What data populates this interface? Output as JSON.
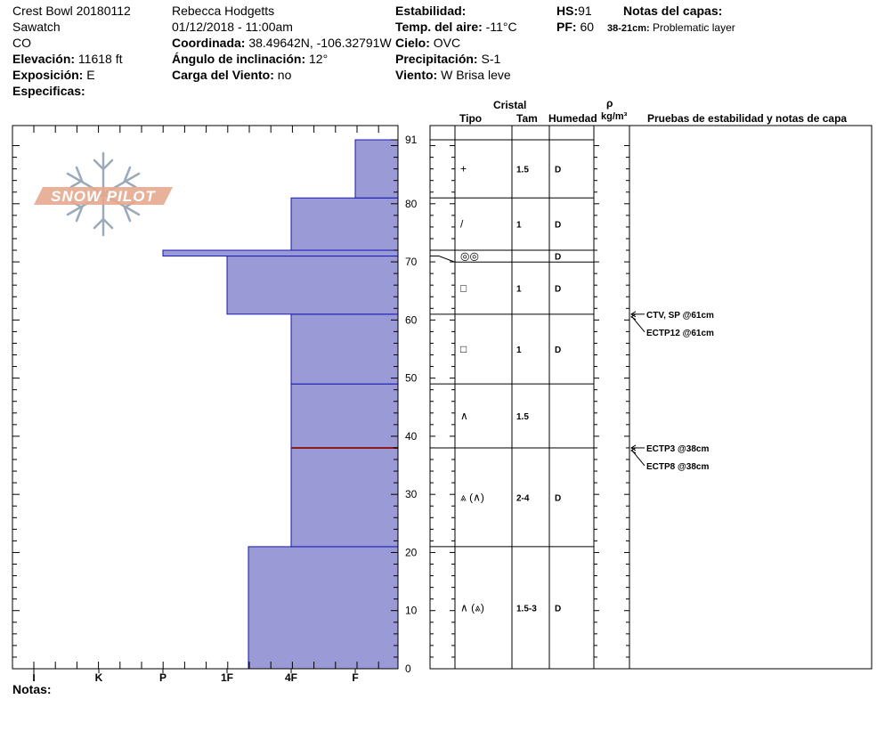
{
  "header": {
    "col1": {
      "site": "Crest Bowl 20180112",
      "range": "Sawatch",
      "state": "CO",
      "elevation_label": "Elevación:",
      "elevation_value": "11618 ft",
      "aspect_label": "Exposición:",
      "aspect_value": "E",
      "specifics_label": "Especificas:"
    },
    "col2": {
      "observer": "Rebecca Hodgetts",
      "datetime": "01/12/2018 - 11:00am",
      "coord_label": "Coordinada:",
      "coord_value": "38.49642N, -106.32791W",
      "slope_label": "Ángulo de inclinación:",
      "slope_value": "12°",
      "wind_load_label": "Carga del Viento:",
      "wind_load_value": "no"
    },
    "col3": {
      "stability_label": "Estabilidad:",
      "air_temp_label": "Temp. del aire:",
      "air_temp_value": "-11°C",
      "sky_label": "Cielo:",
      "sky_value": "OVC",
      "precip_label": "Precipitación:",
      "precip_value": "S-1",
      "wind_label": "Viento:",
      "wind_value": "W Brisa leve"
    },
    "col4": {
      "hs_label": "HS:",
      "hs_value": "91",
      "pf_label": "PF:",
      "pf_value": "60"
    },
    "layer_notes": {
      "title": "Notas del capas:",
      "range": "38-21cm:",
      "text": "Problematic layer"
    }
  },
  "logo": {
    "text": "SNOW PILOT"
  },
  "table_headers": {
    "crystal": "Cristal",
    "type": "Tipo",
    "size": "Tam",
    "moisture": "Humedad",
    "rho": "ρ",
    "density_unit": "kg/m³",
    "tests": "Pruebas de estabilidad y notas de capa"
  },
  "notes_label": "Notas:",
  "chart_data": {
    "type": "bar",
    "subtype": "snow-hardness-profile",
    "y_unit": "cm",
    "ylim": [
      0,
      91
    ],
    "y_ticks": [
      "0",
      "10",
      "20",
      "30",
      "40",
      "50",
      "60",
      "70",
      "80",
      "91"
    ],
    "x_ticks": [
      "I",
      "K",
      "P",
      "1F",
      "4F",
      "F"
    ],
    "hardness_layers": [
      {
        "bottom": 0,
        "top": 21,
        "hardness": "1F+"
      },
      {
        "bottom": 21,
        "top": 38,
        "hardness": "4F"
      },
      {
        "bottom": 38,
        "top": 49,
        "hardness": "4F"
      },
      {
        "bottom": 49,
        "top": 61,
        "hardness": "4F"
      },
      {
        "bottom": 61,
        "top": 71,
        "hardness": "1F"
      },
      {
        "bottom": 71,
        "top": 72,
        "hardness": "P"
      },
      {
        "bottom": 72,
        "top": 81,
        "hardness": "4F"
      },
      {
        "bottom": 81,
        "top": 91,
        "hardness": "F"
      }
    ],
    "problem_layer_depth": 38,
    "layer_rows": [
      {
        "bottom": 81,
        "top": 91,
        "type": "+",
        "size": "1.5",
        "moisture": "D"
      },
      {
        "bottom": 72,
        "top": 81,
        "type": "/",
        "size": "1",
        "moisture": "D"
      },
      {
        "bottom": 71,
        "top": 72,
        "type": "◎◎",
        "size": "",
        "moisture": "D"
      },
      {
        "bottom": 61,
        "top": 71,
        "type": "□",
        "size": "1",
        "moisture": "D"
      },
      {
        "bottom": 49,
        "top": 61,
        "type": "□",
        "size": "1",
        "moisture": "D"
      },
      {
        "bottom": 38,
        "top": 49,
        "type": "∧",
        "size": "1.5",
        "moisture": ""
      },
      {
        "bottom": 21,
        "top": 38,
        "type": "⩓ (∧)",
        "size": "2-4",
        "moisture": "D"
      },
      {
        "bottom": 0,
        "top": 21,
        "type": "∧ (⩓)",
        "size": "1.5-3",
        "moisture": "D"
      }
    ],
    "stability_tests": [
      {
        "depth": 61,
        "text": "CTV, SP @61cm"
      },
      {
        "depth": 61,
        "text": "ECTP12 @61cm"
      },
      {
        "depth": 38,
        "text": "ECTP3 @38cm"
      },
      {
        "depth": 38,
        "text": "ECTP8 @38cm"
      }
    ],
    "colors": {
      "fill": "#9a9ad6",
      "edge": "#1616b4",
      "problem": "#8b1a1a",
      "logo": "#e6a98e",
      "flake": "#9aaab9"
    }
  }
}
